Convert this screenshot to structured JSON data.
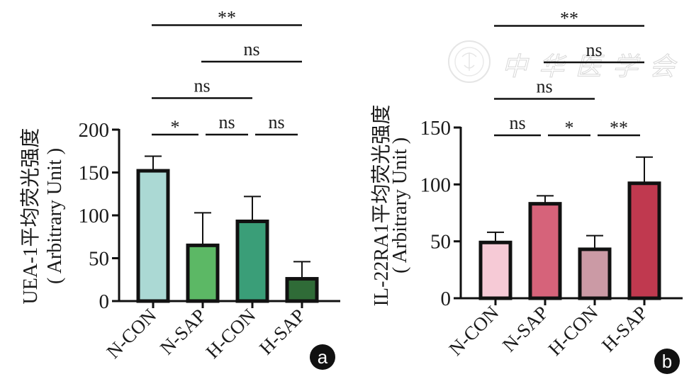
{
  "watermark": {
    "text": "中华医学会"
  },
  "chart_data": [
    {
      "type": "bar",
      "panel": "a",
      "title": "",
      "ylabel": "UEA-1平均荧光强度",
      "ylabel_unit": "( Arbitrary Unit )",
      "xlabel": "",
      "categories": [
        "N-CON",
        "N-SAP",
        "H-CON",
        "H-SAP"
      ],
      "values": [
        152,
        65,
        93,
        26
      ],
      "error_upper": [
        169,
        103,
        122,
        46
      ],
      "colors": [
        "#abd9d4",
        "#5cb865",
        "#3a9e78",
        "#2f6b37"
      ],
      "ylim": [
        0,
        200
      ],
      "yticks": [
        0,
        50,
        100,
        150,
        200
      ],
      "ytick_labels": [
        "0",
        "50",
        "100",
        "150",
        "200"
      ],
      "grid": false,
      "legend": "none",
      "significance": [
        {
          "from": 0,
          "to": 1,
          "label": "*",
          "level": 0
        },
        {
          "from": 1,
          "to": 2,
          "label": "ns",
          "level": 0
        },
        {
          "from": 2,
          "to": 3,
          "label": "ns",
          "level": 0
        },
        {
          "from": 0,
          "to": 2,
          "label": "ns",
          "level": 1
        },
        {
          "from": 1,
          "to": 3,
          "label": "ns",
          "level": 2
        },
        {
          "from": 0,
          "to": 3,
          "label": "**",
          "level": 3
        }
      ]
    },
    {
      "type": "bar",
      "panel": "b",
      "title": "",
      "ylabel": "IL-22RA1平均荧光强度",
      "ylabel_unit": "( Arbitrary Unit )",
      "xlabel": "",
      "categories": [
        "N-CON",
        "N-SAP",
        "H-CON",
        "H-SAP"
      ],
      "values": [
        49,
        83,
        43,
        101
      ],
      "error_upper": [
        58,
        90,
        55,
        124
      ],
      "colors": [
        "#f6cad6",
        "#d6637a",
        "#cb9aa5",
        "#c0394f"
      ],
      "ylim": [
        0,
        150
      ],
      "yticks": [
        0,
        50,
        100,
        150
      ],
      "ytick_labels": [
        "0",
        "50",
        "100",
        "150"
      ],
      "grid": false,
      "legend": "none",
      "significance": [
        {
          "from": 0,
          "to": 1,
          "label": "ns",
          "level": 0
        },
        {
          "from": 1,
          "to": 2,
          "label": "*",
          "level": 0
        },
        {
          "from": 2,
          "to": 3,
          "label": "**",
          "level": 0
        },
        {
          "from": 0,
          "to": 2,
          "label": "ns",
          "level": 1
        },
        {
          "from": 1,
          "to": 3,
          "label": "ns",
          "level": 2
        },
        {
          "from": 0,
          "to": 3,
          "label": "**",
          "level": 3
        }
      ]
    }
  ]
}
